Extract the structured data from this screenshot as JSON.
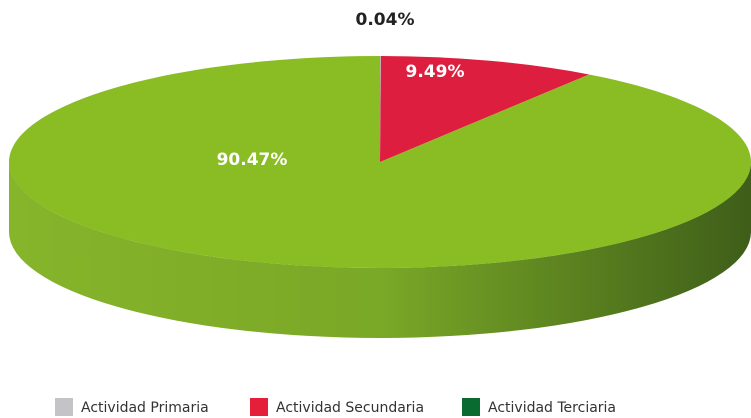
{
  "chart_data": {
    "type": "pie",
    "categories": [
      "Actividad Primaria",
      "Actividad Secundaria",
      "Actividad Terciaria"
    ],
    "values": [
      0.04,
      9.49,
      90.47
    ],
    "value_labels": [
      "0.04%",
      "9.49%",
      "90.47%"
    ],
    "colors": [
      "#bdbdbd",
      "#de1e3f",
      "#8abd24"
    ],
    "legend_colors": [
      "#c4c4c6",
      "#e51e3a",
      "#0a6b31"
    ],
    "legend": "bottom"
  }
}
